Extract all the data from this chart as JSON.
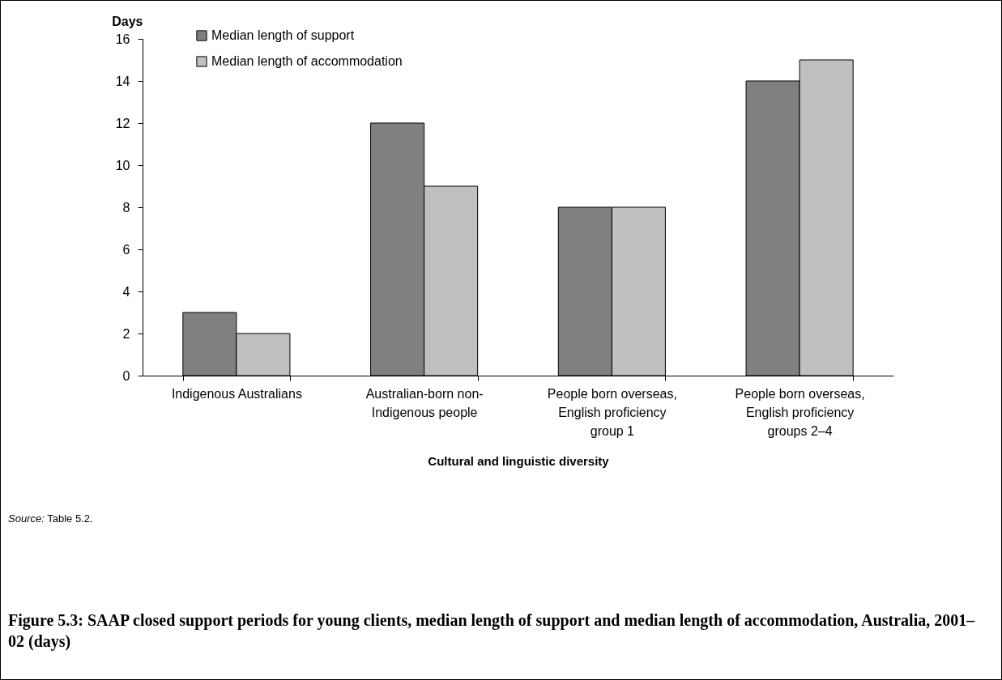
{
  "chart_data": {
    "type": "bar",
    "title": "Figure 5.3: SAAP closed support periods for young clients, median length of support and median length of accommodation, Australia, 2001–02 (days)",
    "xlabel": "Cultural and linguistic diversity",
    "ylabel": "Days",
    "categories": [
      "Indigenous Australians",
      "Australian-born non-Indigenous people",
      "People born overseas, English proficiency group 1",
      "People born overseas, English proficiency groups 2–4"
    ],
    "series": [
      {
        "name": "Median length of support",
        "color": "#808080",
        "values": [
          3,
          12,
          8,
          14
        ]
      },
      {
        "name": "Median length of accommodation",
        "color": "#c0c0c0",
        "values": [
          2,
          9,
          8,
          15
        ]
      }
    ],
    "ylim": [
      0,
      16
    ],
    "yticks": [
      0,
      2,
      4,
      6,
      8,
      10,
      12,
      14,
      16
    ],
    "legend": "top left",
    "annotations": [
      "Source: Table 5.2."
    ]
  }
}
